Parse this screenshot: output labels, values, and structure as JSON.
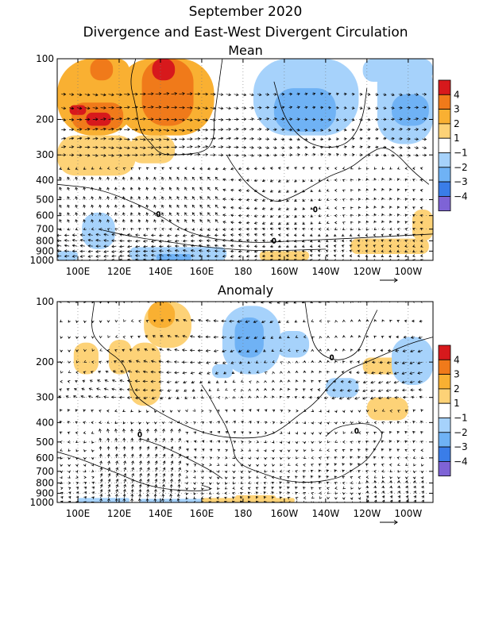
{
  "titles": {
    "line1": "September 2020",
    "line2": "Divergence and East-West Divergent Circulation"
  },
  "colorbar": {
    "labels": [
      "4",
      "3",
      "2",
      "1",
      "−1",
      "−2",
      "−3",
      "−4"
    ],
    "colors": [
      "#d7191c",
      "#f07a1a",
      "#f9b032",
      "#fdd277",
      "#ffffff",
      "#a6d2fb",
      "#6fb2f5",
      "#3a7de8",
      "#7e63d6"
    ]
  },
  "chart_data": [
    {
      "type": "heatmap",
      "title": "Mean",
      "x_axis": {
        "ticks": [
          "100E",
          "120E",
          "140E",
          "160E",
          "180",
          "160W",
          "140W",
          "120W",
          "100W"
        ],
        "range_deg_east": [
          90,
          272
        ]
      },
      "y_axis": {
        "ticks": [
          "100",
          "200",
          "300",
          "400",
          "500",
          "600",
          "700",
          "800",
          "900",
          "1000"
        ],
        "range_hPa": [
          100,
          1000
        ],
        "scale": "log"
      },
      "vector_reference": "5",
      "contour_label": "0",
      "divergence_patches": [
        {
          "lon_range": [
            90,
            128
          ],
          "p_range": [
            100,
            240
          ],
          "level": 2
        },
        {
          "lon_range": [
            97,
            122
          ],
          "p_range": [
            165,
            225
          ],
          "level": 3
        },
        {
          "lon_range": [
            104,
            116
          ],
          "p_range": [
            185,
            215
          ],
          "level": 4
        },
        {
          "lon_range": [
            100,
            125
          ],
          "p_range": [
            100,
            135
          ],
          "level": 2
        },
        {
          "lon_range": [
            106,
            117
          ],
          "p_range": [
            100,
            128
          ],
          "level": 3
        },
        {
          "lon_range": [
            119,
            166
          ],
          "p_range": [
            100,
            240
          ],
          "level": 2
        },
        {
          "lon_range": [
            131,
            156
          ],
          "p_range": [
            100,
            215
          ],
          "level": 3
        },
        {
          "lon_range": [
            136,
            147
          ],
          "p_range": [
            100,
            128
          ],
          "level": 4
        },
        {
          "lon_range": [
            90,
            128
          ],
          "p_range": [
            240,
            380
          ],
          "level": 1
        },
        {
          "lon_range": [
            125,
            147
          ],
          "p_range": [
            240,
            330
          ],
          "level": 1
        },
        {
          "lon_range": [
            96,
            104
          ],
          "p_range": [
            170,
            190
          ],
          "level": 4
        },
        {
          "lon_range": [
            185,
            236
          ],
          "p_range": [
            100,
            240
          ],
          "level": -1
        },
        {
          "lon_range": [
            195,
            225
          ],
          "p_range": [
            140,
            230
          ],
          "level": -2
        },
        {
          "lon_range": [
            245,
            272
          ],
          "p_range": [
            100,
            265
          ],
          "level": -1
        },
        {
          "lon_range": [
            252,
            270
          ],
          "p_range": [
            150,
            215
          ],
          "level": -2
        },
        {
          "lon_range": [
            238,
            272
          ],
          "p_range": [
            100,
            130
          ],
          "level": -1
        },
        {
          "lon_range": [
            102,
            118
          ],
          "p_range": [
            580,
            880
          ],
          "level": -1
        },
        {
          "lon_range": [
            90,
            100
          ],
          "p_range": [
            900,
            1000
          ],
          "level": -1
        },
        {
          "lon_range": [
            125,
            172
          ],
          "p_range": [
            860,
            1000
          ],
          "level": -1
        },
        {
          "lon_range": [
            138,
            155
          ],
          "p_range": [
            930,
            1000
          ],
          "level": -2
        },
        {
          "lon_range": [
            188,
            212
          ],
          "p_range": [
            900,
            1000
          ],
          "level": 1
        },
        {
          "lon_range": [
            232,
            270
          ],
          "p_range": [
            780,
            930
          ],
          "level": 1
        },
        {
          "lon_range": [
            262,
            272
          ],
          "p_range": [
            560,
            800
          ],
          "level": 1
        }
      ]
    },
    {
      "type": "heatmap",
      "title": "Anomaly",
      "x_axis": {
        "ticks": [
          "100E",
          "120E",
          "140E",
          "160E",
          "180",
          "160W",
          "140W",
          "120W",
          "100W"
        ],
        "range_deg_east": [
          90,
          272
        ]
      },
      "y_axis": {
        "ticks": [
          "100",
          "200",
          "300",
          "400",
          "500",
          "600",
          "700",
          "800",
          "900",
          "1000"
        ],
        "range_hPa": [
          100,
          1000
        ],
        "scale": "log"
      },
      "vector_reference": "5",
      "contour_label": "0",
      "divergence_patches": [
        {
          "lon_range": [
            132,
            155
          ],
          "p_range": [
            100,
            170
          ],
          "level": 1
        },
        {
          "lon_range": [
            134,
            147
          ],
          "p_range": [
            100,
            135
          ],
          "level": 2
        },
        {
          "lon_range": [
            125,
            140
          ],
          "p_range": [
            160,
            330
          ],
          "level": 1
        },
        {
          "lon_range": [
            98,
            110
          ],
          "p_range": [
            160,
            230
          ],
          "level": 1
        },
        {
          "lon_range": [
            115,
            126
          ],
          "p_range": [
            155,
            230
          ],
          "level": 1
        },
        {
          "lon_range": [
            196,
            212
          ],
          "p_range": [
            140,
            190
          ],
          "level": -1
        },
        {
          "lon_range": [
            165,
            175
          ],
          "p_range": [
            205,
            240
          ],
          "level": -1
        },
        {
          "lon_range": [
            220,
            236
          ],
          "p_range": [
            240,
            300
          ],
          "level": -1
        },
        {
          "lon_range": [
            240,
            260
          ],
          "p_range": [
            300,
            390
          ],
          "level": 1
        },
        {
          "lon_range": [
            238,
            258
          ],
          "p_range": [
            190,
            230
          ],
          "level": 1
        },
        {
          "lon_range": [
            252,
            272
          ],
          "p_range": [
            150,
            260
          ],
          "level": -1
        },
        {
          "lon_range": [
            170,
            198
          ],
          "p_range": [
            105,
            230
          ],
          "level": -1
        },
        {
          "lon_range": [
            176,
            190
          ],
          "p_range": [
            120,
            190
          ],
          "level": -2
        },
        {
          "lon_range": [
            100,
            125
          ],
          "p_range": [
            950,
            1000
          ],
          "level": -1
        },
        {
          "lon_range": [
            130,
            165
          ],
          "p_range": [
            960,
            1000
          ],
          "level": -1
        },
        {
          "lon_range": [
            160,
            205
          ],
          "p_range": [
            950,
            1000
          ],
          "level": 1
        },
        {
          "lon_range": [
            176,
            196
          ],
          "p_range": [
            920,
            1000
          ],
          "level": 1
        }
      ]
    }
  ]
}
